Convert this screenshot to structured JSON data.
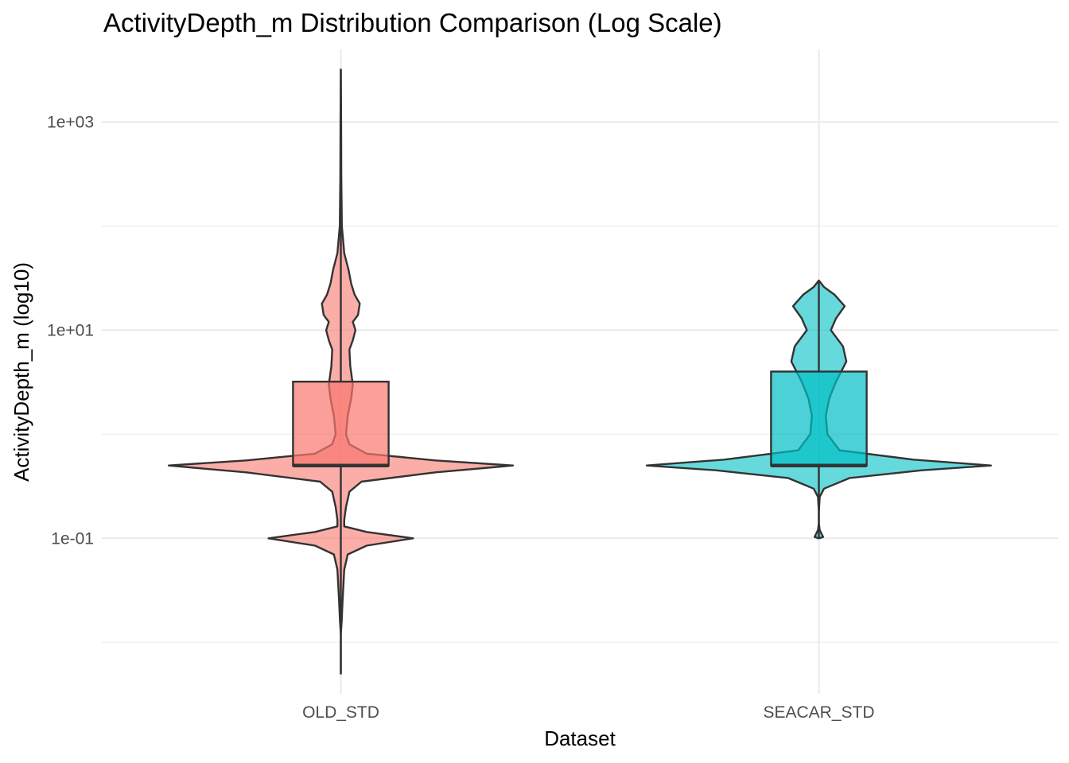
{
  "chart_data": {
    "type": "violin",
    "title": "ActivityDepth_m Distribution Comparison (Log Scale)",
    "xlabel": "Dataset",
    "ylabel": "ActivityDepth_m (log10)",
    "y_scale": "log10",
    "ylim": [
      0.0032,
      5000
    ],
    "y_ticks": [
      {
        "value": 0.1,
        "label": "1e-01"
      },
      {
        "value": 10,
        "label": "1e+01"
      },
      {
        "value": 1000,
        "label": "1e+03"
      }
    ],
    "y_minor_ticks": [
      0.01,
      1,
      100
    ],
    "categories": [
      "OLD_STD",
      "SEACAR_STD"
    ],
    "series": [
      {
        "name": "OLD_STD",
        "color": "#F8766D",
        "box": {
          "q1": 0.5,
          "median": 0.5,
          "q3": 3.2,
          "whisker_low": 0.005,
          "whisker_high": 3200
        },
        "density_profile": [
          [
            0.005,
            0.0
          ],
          [
            0.012,
            0.0
          ],
          [
            0.016,
            0.005
          ],
          [
            0.025,
            0.01
          ],
          [
            0.05,
            0.02
          ],
          [
            0.07,
            0.04
          ],
          [
            0.085,
            0.15
          ],
          [
            0.1,
            0.42
          ],
          [
            0.115,
            0.15
          ],
          [
            0.13,
            0.02
          ],
          [
            0.15,
            0.02
          ],
          [
            0.2,
            0.03
          ],
          [
            0.28,
            0.05
          ],
          [
            0.35,
            0.12
          ],
          [
            0.43,
            0.55
          ],
          [
            0.5,
            1.0
          ],
          [
            0.56,
            0.55
          ],
          [
            0.65,
            0.15
          ],
          [
            0.8,
            0.05
          ],
          [
            1.0,
            0.03
          ],
          [
            1.5,
            0.04
          ],
          [
            2.2,
            0.06
          ],
          [
            3.0,
            0.07
          ],
          [
            4.5,
            0.055
          ],
          [
            6.5,
            0.05
          ],
          [
            8.0,
            0.07
          ],
          [
            10,
            0.085
          ],
          [
            12,
            0.07
          ],
          [
            14,
            0.1
          ],
          [
            18,
            0.11
          ],
          [
            22,
            0.08
          ],
          [
            28,
            0.06
          ],
          [
            38,
            0.045
          ],
          [
            55,
            0.02
          ],
          [
            100,
            0.006
          ],
          [
            300,
            0.003
          ],
          [
            1000,
            0.002
          ],
          [
            3200,
            0.0
          ]
        ]
      },
      {
        "name": "SEACAR_STD",
        "color": "#00BFC4",
        "box": {
          "q1": 0.5,
          "median": 0.5,
          "q3": 4.0,
          "whisker_low": 0.1,
          "whisker_high": 30
        },
        "density_profile": [
          [
            0.1,
            0.0
          ],
          [
            0.103,
            0.025
          ],
          [
            0.12,
            0.005
          ],
          [
            0.14,
            0.0
          ],
          [
            0.18,
            0.0
          ],
          [
            0.25,
            0.005
          ],
          [
            0.3,
            0.03
          ],
          [
            0.38,
            0.18
          ],
          [
            0.45,
            0.6
          ],
          [
            0.5,
            1.0
          ],
          [
            0.57,
            0.55
          ],
          [
            0.7,
            0.12
          ],
          [
            1.0,
            0.05
          ],
          [
            1.5,
            0.04
          ],
          [
            2.2,
            0.06
          ],
          [
            3.2,
            0.1
          ],
          [
            5.0,
            0.16
          ],
          [
            7.0,
            0.14
          ],
          [
            10,
            0.07
          ],
          [
            13,
            0.1
          ],
          [
            17,
            0.15
          ],
          [
            22,
            0.09
          ],
          [
            26,
            0.03
          ],
          [
            30,
            0.0
          ]
        ]
      }
    ]
  }
}
